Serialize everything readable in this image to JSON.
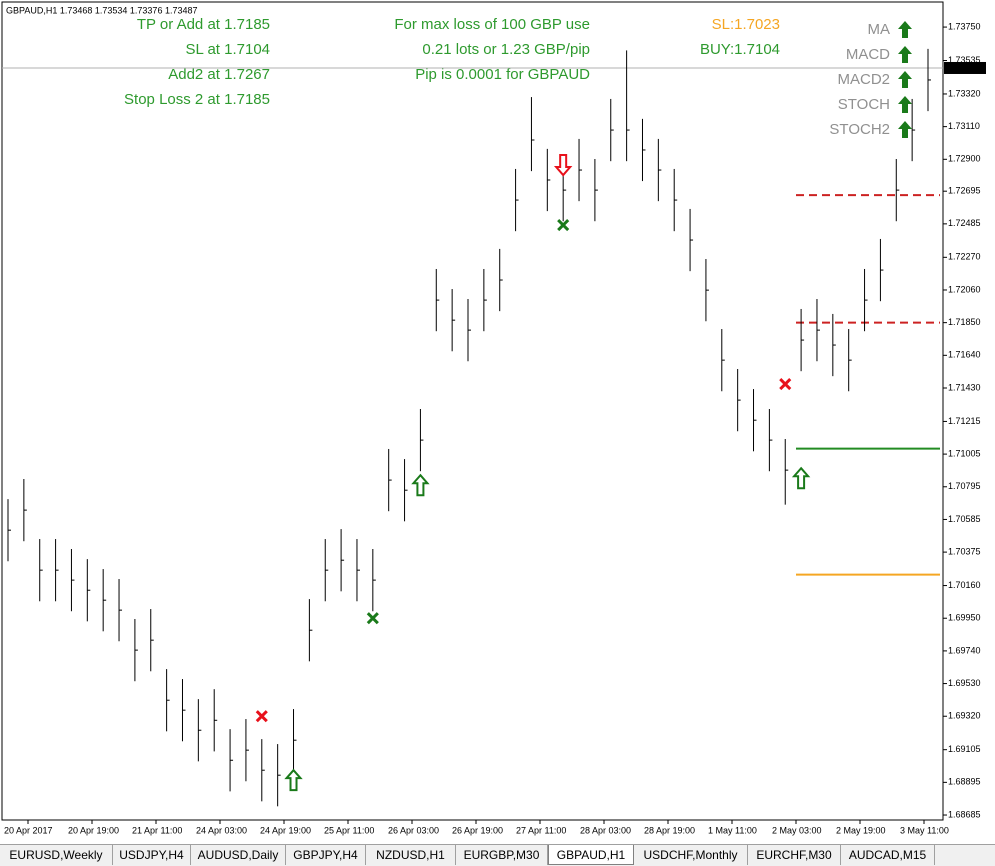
{
  "header": "GBPAUD,H1  1.73468 1.73534 1.73376 1.73487",
  "chart_data": {
    "type": "ohlc",
    "ylim": [
      1.68653,
      1.73924
    ],
    "yticks": [
      {
        "value": 1.7375,
        "label": "1.73750"
      },
      1.73535,
      {
        "value": 1.7332,
        "label": "1.73320"
      },
      {
        "value": 1.7311,
        "label": "1.73110"
      },
      {
        "value": 1.729,
        "label": "1.72900"
      },
      1.72695,
      1.72485,
      {
        "value": 1.7227,
        "label": "1.72270"
      },
      {
        "value": 1.7206,
        "label": "1.72060"
      },
      {
        "value": 1.7185,
        "label": "1.71850"
      },
      {
        "value": 1.7164,
        "label": "1.71640"
      },
      {
        "value": 1.7143,
        "label": "1.71430"
      },
      1.71215,
      1.71005,
      1.70795,
      1.70585,
      1.70375,
      {
        "value": 1.7016,
        "label": "1.70160"
      },
      {
        "value": 1.6995,
        "label": "1.69950"
      },
      {
        "value": 1.6974,
        "label": "1.69740"
      },
      {
        "value": 1.6953,
        "label": "1.69530"
      },
      {
        "value": 1.6932,
        "label": "1.69320"
      },
      1.69105,
      1.68895,
      1.68685
    ],
    "time_labels": [
      "20 Apr 2017",
      "20 Apr 19:00",
      "21 Apr 11:00",
      "24 Apr 03:00",
      "24 Apr 19:00",
      "25 Apr 11:00",
      "26 Apr 03:00",
      "26 Apr 19:00",
      "27 Apr 11:00",
      "28 Apr 03:00",
      "28 Apr 19:00",
      "1 May 11:00",
      "2 May 03:00",
      "2 May 19:00",
      "3 May 11:00"
    ],
    "high": [
      1.70716,
      1.70845,
      1.70459,
      1.70459,
      1.70395,
      1.7033,
      1.70266,
      1.70202,
      1.69945,
      1.70009,
      1.69623,
      1.69559,
      1.6943,
      1.69494,
      1.69237,
      1.69302,
      1.69173,
      1.69141,
      1.69366,
      1.70073,
      1.70459,
      1.70523,
      1.70459,
      1.70395,
      1.71038,
      1.70973,
      1.71295,
      1.72195,
      1.72066,
      1.72002,
      1.72195,
      1.72324,
      1.72838,
      1.733,
      1.72967,
      1.72902,
      1.73031,
      1.72902,
      1.73288,
      1.736,
      1.7316,
      1.73031,
      1.72838,
      1.72581,
      1.72259,
      1.71809,
      1.71552,
      1.71423,
      1.71295,
      1.71102,
      1.71938,
      1.72002,
      1.71906,
      1.71809,
      1.72195,
      1.72388,
      1.72902,
      1.73288,
      1.7361
    ],
    "low": [
      1.70316,
      1.70445,
      1.70059,
      1.70059,
      1.69995,
      1.6993,
      1.69866,
      1.69802,
      1.69545,
      1.69609,
      1.69223,
      1.69159,
      1.6903,
      1.69094,
      1.68837,
      1.68902,
      1.68773,
      1.68741,
      1.68966,
      1.69673,
      1.70059,
      1.70123,
      1.70059,
      1.69995,
      1.70638,
      1.70573,
      1.70895,
      1.71795,
      1.71666,
      1.71602,
      1.71795,
      1.71924,
      1.72438,
      1.72824,
      1.72567,
      1.72502,
      1.72631,
      1.72502,
      1.72888,
      1.72888,
      1.7276,
      1.72631,
      1.72438,
      1.72181,
      1.71859,
      1.71409,
      1.71152,
      1.71023,
      1.70895,
      1.7068,
      1.71538,
      1.71602,
      1.71506,
      1.71409,
      1.71795,
      1.71988,
      1.72502,
      1.72888,
      1.7321
    ],
    "close": [
      1.70516,
      1.70645,
      1.70259,
      1.70259,
      1.70195,
      1.7013,
      1.70066,
      1.70002,
      1.69745,
      1.69809,
      1.69423,
      1.69359,
      1.6923,
      1.69294,
      1.69037,
      1.69102,
      1.68973,
      1.68941,
      1.69166,
      1.69873,
      1.70259,
      1.70323,
      1.70259,
      1.70195,
      1.70838,
      1.70773,
      1.71095,
      1.71995,
      1.71866,
      1.71802,
      1.71995,
      1.72124,
      1.72638,
      1.73024,
      1.72767,
      1.72702,
      1.72831,
      1.72702,
      1.73088,
      1.73088,
      1.7296,
      1.72831,
      1.72638,
      1.72381,
      1.72059,
      1.71609,
      1.71352,
      1.71223,
      1.71095,
      1.70902,
      1.71738,
      1.71802,
      1.71706,
      1.71609,
      1.71995,
      1.72188,
      1.72702,
      1.73088,
      1.7341
    ],
    "current_price": 1.73487,
    "levels": [
      {
        "value": 1.7267,
        "color": "#cc2222",
        "style": "dashed"
      },
      {
        "value": 1.7185,
        "color": "#cc2222",
        "style": "dashed"
      },
      {
        "value": 1.7104,
        "color": "#228b22",
        "style": "solid"
      },
      {
        "value": 1.7023,
        "color": "#f5a623",
        "style": "solid"
      }
    ],
    "signals": [
      {
        "kind": "up",
        "bar": 26,
        "price": 1.70805
      },
      {
        "kind": "up",
        "bar": 18,
        "price": 1.68909
      },
      {
        "kind": "up",
        "bar": 50,
        "price": 1.7085
      },
      {
        "kind": "down",
        "bar": 35,
        "price": 1.72863
      },
      {
        "kind": "cross",
        "color": "#e8111b",
        "bar": 16,
        "price": 1.6932
      },
      {
        "kind": "cross",
        "color": "#1a7a1a",
        "bar": 23,
        "price": 1.6995
      },
      {
        "kind": "cross",
        "color": "#1a7a1a",
        "bar": 35,
        "price": 1.72477
      },
      {
        "kind": "cross",
        "color": "#e8111b",
        "bar": 49,
        "price": 1.71455
      }
    ]
  },
  "annotations": {
    "left": [
      "TP or Add at 1.7185",
      "SL at 1.7104",
      "Add2 at 1.7267",
      "Stop Loss 2 at 1.7185"
    ],
    "middle": [
      "For max loss of 100 GBP use",
      "0.21 lots or 1.23 GBP/pip",
      "Pip is 0.0001 for GBPAUD"
    ],
    "sl": "SL:1.7023",
    "buy": "BUY:1.7104"
  },
  "indicators": [
    "MA",
    "MACD",
    "MACD2",
    "STOCH",
    "STOCH2"
  ],
  "tabs": [
    "EURUSD,Weekly",
    "USDJPY,H4",
    "AUDUSD,Daily",
    "GBPJPY,H4",
    "NZDUSD,H1",
    "EURGBP,M30",
    "GBPAUD,H1",
    "USDCHF,Monthly",
    "EURCHF,M30",
    "AUDCAD,M15"
  ],
  "active_tab": 6
}
